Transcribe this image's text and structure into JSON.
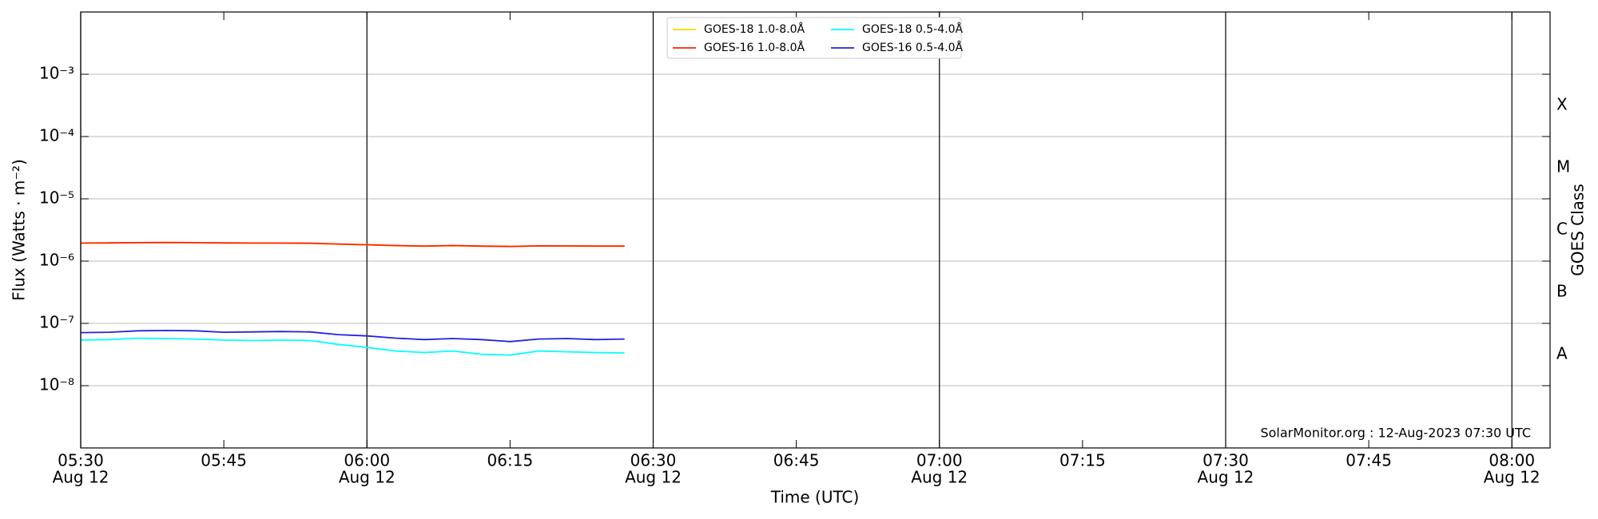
{
  "chart_data": {
    "type": "line",
    "x_label": "Time (UTC)",
    "y_label": "Flux (Watts · m⁻²)",
    "y2_label": "GOES Class",
    "annotation": "SolarMonitor.org : 12-Aug-2023 07:30 UTC",
    "log_y": true,
    "grid": true,
    "legend": "upper center",
    "xlim": [
      "05:30",
      "08:04"
    ],
    "ylim": [
      1e-09,
      0.01
    ],
    "y2lim": [
      1e-09,
      0.01
    ],
    "xticks": [
      {
        "value": "05:30",
        "label": "05:30",
        "date": "Aug 12"
      },
      {
        "value": "05:45",
        "label": "05:45"
      },
      {
        "value": "06:00",
        "label": "06:00",
        "date": "Aug 12"
      },
      {
        "value": "06:15",
        "label": "06:15"
      },
      {
        "value": "06:30",
        "label": "06:30",
        "date": "Aug 12"
      },
      {
        "value": "06:45",
        "label": "06:45"
      },
      {
        "value": "07:00",
        "label": "07:00",
        "date": "Aug 12"
      },
      {
        "value": "07:15",
        "label": "07:15"
      },
      {
        "value": "07:30",
        "label": "07:30",
        "date": "Aug 12"
      },
      {
        "value": "07:45",
        "label": "07:45"
      },
      {
        "value": "08:00",
        "label": "08:00",
        "date": "Aug 12"
      }
    ],
    "yticks": [
      {
        "value": 1e-08,
        "label": "10⁻⁸"
      },
      {
        "value": 1e-07,
        "label": "10⁻⁷"
      },
      {
        "value": 1e-06,
        "label": "10⁻⁶"
      },
      {
        "value": 1e-05,
        "label": "10⁻⁵"
      },
      {
        "value": 0.0001,
        "label": "10⁻⁴"
      },
      {
        "value": 0.001,
        "label": "10⁻³"
      }
    ],
    "y2ticks": [
      {
        "value": 3.16e-08,
        "label": "A"
      },
      {
        "value": 3.16e-07,
        "label": "B"
      },
      {
        "value": 3.16e-06,
        "label": "C"
      },
      {
        "value": 3.16e-05,
        "label": "M"
      },
      {
        "value": 0.000316,
        "label": "X"
      }
    ],
    "x": [
      "05:30",
      "05:33",
      "05:36",
      "05:39",
      "05:42",
      "05:45",
      "05:48",
      "05:51",
      "05:54",
      "05:57",
      "06:00",
      "06:03",
      "06:06",
      "06:09",
      "06:12",
      "06:15",
      "06:18",
      "06:21",
      "06:24",
      "06:27"
    ],
    "series": [
      {
        "name": "GOES-18 1.0-8.0Å",
        "color": "#ffd700",
        "values": [
          1.94e-06,
          1.95e-06,
          1.97e-06,
          1.98e-06,
          1.97e-06,
          1.95e-06,
          1.94e-06,
          1.94e-06,
          1.93e-06,
          1.87e-06,
          1.82e-06,
          1.77e-06,
          1.73e-06,
          1.77e-06,
          1.73e-06,
          1.71e-06,
          1.75e-06,
          1.74e-06,
          1.73e-06,
          1.73e-06
        ]
      },
      {
        "name": "GOES-16 1.0-8.0Å",
        "color": "#ff2200",
        "values": [
          1.95e-06,
          1.96e-06,
          1.98e-06,
          1.99e-06,
          1.98e-06,
          1.96e-06,
          1.95e-06,
          1.95e-06,
          1.94e-06,
          1.88e-06,
          1.83e-06,
          1.78e-06,
          1.74e-06,
          1.78e-06,
          1.74e-06,
          1.72e-06,
          1.76e-06,
          1.75e-06,
          1.74e-06,
          1.74e-06
        ]
      },
      {
        "name": "GOES-18 0.5-4.0Å",
        "color": "#00ffff",
        "values": [
          5.4e-08,
          5.5e-08,
          5.8e-08,
          5.7e-08,
          5.6e-08,
          5.4e-08,
          5.3e-08,
          5.4e-08,
          5.3e-08,
          4.6e-08,
          4.1e-08,
          3.6e-08,
          3.4e-08,
          3.6e-08,
          3.2e-08,
          3.1e-08,
          3.6e-08,
          3.5e-08,
          3.4e-08,
          3.35e-08
        ]
      },
      {
        "name": "GOES-16 0.5-4.0Å",
        "color": "#2222dd",
        "values": [
          7.1e-08,
          7.2e-08,
          7.6e-08,
          7.7e-08,
          7.6e-08,
          7.2e-08,
          7.3e-08,
          7.4e-08,
          7.3e-08,
          6.6e-08,
          6.3e-08,
          5.8e-08,
          5.5e-08,
          5.7e-08,
          5.5e-08,
          5.1e-08,
          5.6e-08,
          5.7e-08,
          5.5e-08,
          5.6e-08
        ]
      }
    ]
  }
}
